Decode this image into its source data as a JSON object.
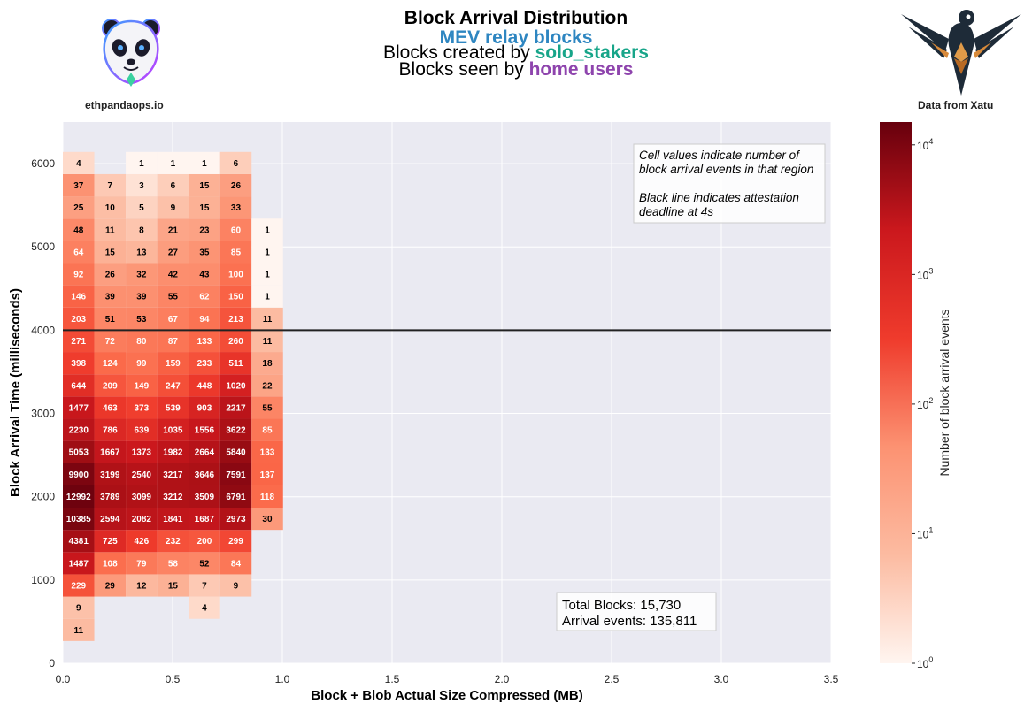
{
  "header": {
    "title": "Block Arrival Distribution",
    "line1_colored": "MEV relay blocks",
    "line1_color": "#2E86C1",
    "line2_prefix": "Blocks created by ",
    "line2_colored": "solo_stakers",
    "line2_color": "#17A589",
    "line3_prefix": "Blocks seen by ",
    "line3_colored": "home users",
    "line3_color": "#8E44AD"
  },
  "logos": {
    "left_icon": "panda-logo-icon",
    "left_caption": "ethpandaops.io",
    "right_icon": "xatu-bird-logo-icon",
    "right_caption": "Data from Xatu"
  },
  "chart_data": {
    "type": "heatmap",
    "xlabel": "Block + Blob Actual Size Compressed (MB)",
    "ylabel": "Block Arrival Time (milliseconds)",
    "xlim": [
      0,
      3.5
    ],
    "ylim": [
      0,
      6500
    ],
    "xticks": [
      0.0,
      0.5,
      1.0,
      1.5,
      2.0,
      2.5,
      3.0,
      3.5
    ],
    "xtick_labels": [
      "0.0",
      "0.5",
      "1.0",
      "1.5",
      "2.0",
      "2.5",
      "3.0",
      "3.5"
    ],
    "yticks": [
      0,
      1000,
      2000,
      3000,
      4000,
      5000,
      6000
    ],
    "ytick_labels": [
      "0",
      "1000",
      "2000",
      "3000",
      "4000",
      "5000",
      "6000"
    ],
    "x_bin_edges": [
      0.0,
      0.1433,
      0.2866,
      0.4299,
      0.5732,
      0.7165,
      0.8598,
      1.0031
    ],
    "y_bin_width_ms": 267,
    "y_bin_start_ms": 267,
    "counts_bottom_to_top": [
      [
        11,
        null,
        null,
        null,
        null,
        null,
        null
      ],
      [
        9,
        null,
        null,
        null,
        4,
        null,
        null
      ],
      [
        229,
        29,
        12,
        15,
        7,
        9,
        null
      ],
      [
        1487,
        108,
        79,
        58,
        52,
        84,
        null
      ],
      [
        4381,
        725,
        426,
        232,
        200,
        299,
        null
      ],
      [
        10385,
        2594,
        2082,
        1841,
        1687,
        2973,
        30
      ],
      [
        12992,
        3789,
        3099,
        3212,
        3509,
        6791,
        118
      ],
      [
        9900,
        3199,
        2540,
        3217,
        3646,
        7591,
        137
      ],
      [
        5053,
        1667,
        1373,
        1982,
        2664,
        5840,
        133
      ],
      [
        2230,
        786,
        639,
        1035,
        1556,
        3622,
        85
      ],
      [
        1477,
        463,
        373,
        539,
        903,
        2217,
        55
      ],
      [
        644,
        209,
        149,
        247,
        448,
        1020,
        22
      ],
      [
        398,
        124,
        99,
        159,
        233,
        511,
        18
      ],
      [
        271,
        72,
        80,
        87,
        133,
        260,
        11
      ],
      [
        203,
        51,
        53,
        67,
        94,
        213,
        11
      ],
      [
        146,
        39,
        39,
        55,
        62,
        150,
        1
      ],
      [
        92,
        26,
        32,
        42,
        43,
        100,
        1
      ],
      [
        64,
        15,
        13,
        27,
        35,
        85,
        1
      ],
      [
        48,
        11,
        8,
        21,
        23,
        60,
        1
      ],
      [
        25,
        10,
        5,
        9,
        15,
        33,
        null
      ],
      [
        37,
        7,
        3,
        6,
        15,
        26,
        null
      ],
      [
        4,
        null,
        1,
        1,
        1,
        6,
        null
      ]
    ],
    "deadline_line_ms": 4000,
    "annotation_lines": [
      "Cell values indicate number of",
      "block arrival events in that region",
      "",
      "Black line indicates attestation",
      "deadline at 4s"
    ],
    "stats_lines": [
      "Total Blocks: 15,730",
      "Arrival events: 135,811"
    ],
    "colorbar": {
      "label": "Number of block arrival events",
      "scale": "log",
      "range": [
        1,
        15000
      ],
      "tick_values": [
        1,
        10,
        100,
        1000,
        10000
      ],
      "tick_base": "10",
      "tick_exponents": [
        "0",
        "1",
        "2",
        "3",
        "4"
      ],
      "colormap": "Reds"
    },
    "plot_background": "#EAEAF2",
    "grid": true
  }
}
